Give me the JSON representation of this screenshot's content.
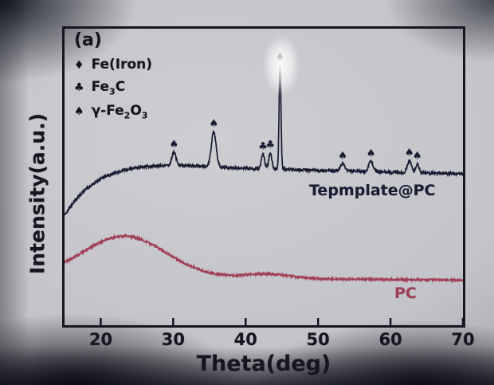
{
  "chart": {
    "panel_label": "(a)",
    "legend": [
      {
        "symbol": "♦",
        "text": "Fe(Iron)"
      },
      {
        "symbol": "♣",
        "pre": "Fe",
        "sub": "3",
        "post": "C"
      },
      {
        "symbol": "♠",
        "pre": "γ-Fe",
        "sub": "2",
        "mid": "O",
        "sub2": "3"
      }
    ]
  },
  "chart_data": {
    "type": "line",
    "title": "",
    "xlabel": "Theta(deg)",
    "ylabel": "Intensity(a.u.)",
    "xlim": [
      15,
      70
    ],
    "ylim": [
      0,
      1
    ],
    "x_ticks": [
      20,
      30,
      40,
      50,
      60,
      70
    ],
    "grid": false,
    "legend_position": "top-left",
    "series": [
      {
        "name": "Tepmplate@PC",
        "color": "#1b1c33",
        "noise": 0.005,
        "baseline": {
          "level": 0.525,
          "expo": {
            "amp": -0.165,
            "tau": 4.0
          },
          "gaussians": [
            {
              "c": 26,
              "h": 0.02,
              "w": 8
            }
          ],
          "slope": {
            "from": 45,
            "k": -0.0006
          }
        },
        "peaks": [
          {
            "x": 30.1,
            "h": 0.045,
            "w": 0.28,
            "marker": "♠",
            "phase": "γ-Fe2O3"
          },
          {
            "x": 35.6,
            "h": 0.12,
            "w": 0.33,
            "marker": "♠",
            "phase": "γ-Fe2O3"
          },
          {
            "x": 42.4,
            "h": 0.05,
            "w": 0.22,
            "marker": "♣",
            "phase": "Fe3C"
          },
          {
            "x": 43.4,
            "h": 0.055,
            "w": 0.2,
            "marker": "♣",
            "phase": "Fe3C"
          },
          {
            "x": 44.75,
            "h": 0.35,
            "w": 0.13,
            "marker": "♦",
            "phase": "Fe"
          },
          {
            "x": 53.4,
            "h": 0.025,
            "w": 0.3,
            "marker": "♠",
            "phase": "γ-Fe2O3"
          },
          {
            "x": 57.3,
            "h": 0.035,
            "w": 0.3,
            "marker": "♠",
            "phase": "γ-Fe2O3"
          },
          {
            "x": 62.6,
            "h": 0.04,
            "w": 0.28,
            "marker": "♠",
            "phase": "γ-Fe2O3"
          },
          {
            "x": 63.7,
            "h": 0.03,
            "w": 0.24,
            "marker": "♠",
            "phase": "γ-Fe2O3"
          }
        ]
      },
      {
        "name": "PC",
        "color": "#a03e56",
        "noise": 0.0035,
        "baseline": {
          "level": 0.16,
          "gaussians": [
            {
              "c": 23.2,
              "h": 0.14,
              "w": 5.8
            },
            {
              "c": 43.0,
              "h": 0.015,
              "w": 3.2
            }
          ],
          "slope": {
            "from": 30,
            "k": -0.0002
          }
        },
        "peaks": []
      }
    ]
  }
}
